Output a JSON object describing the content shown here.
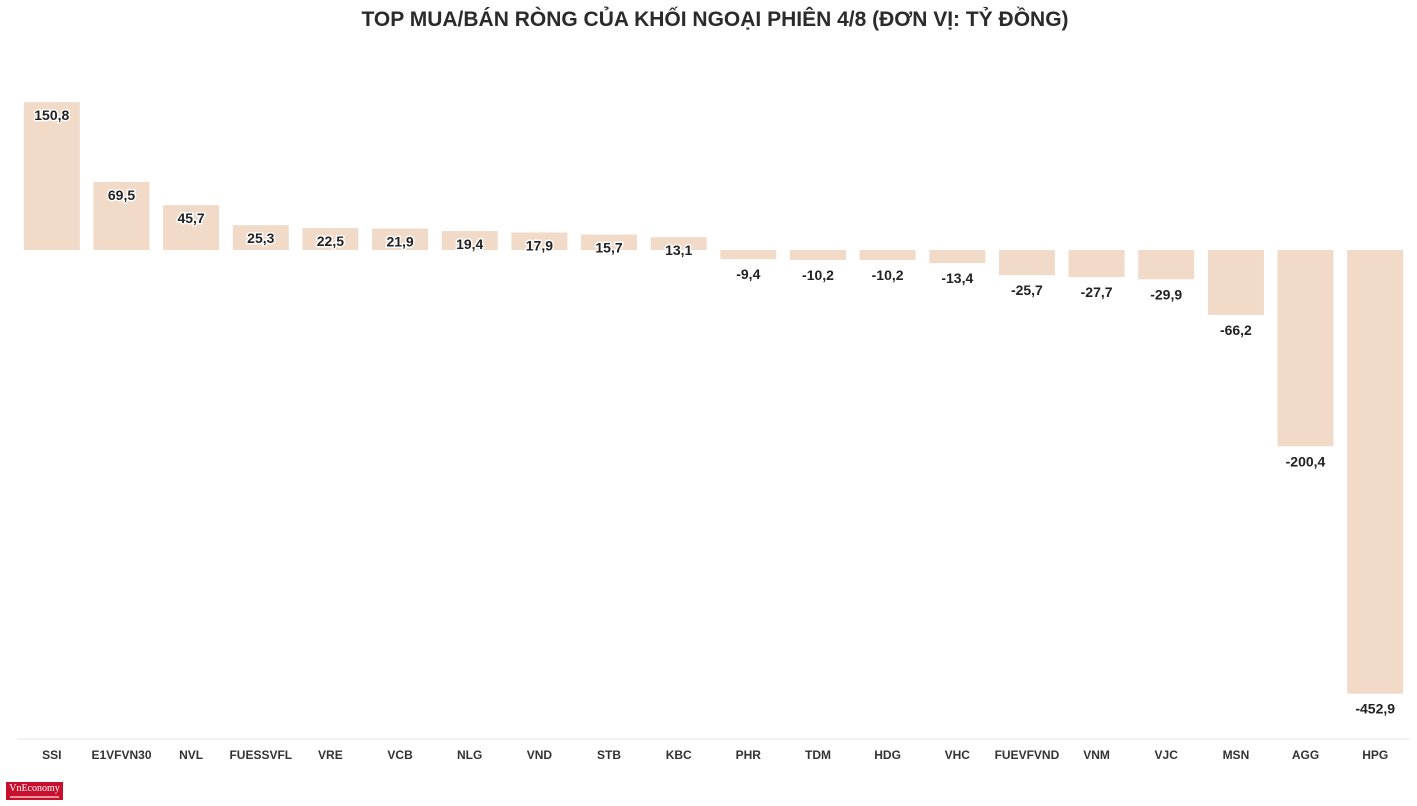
{
  "chart_data": {
    "type": "bar",
    "title": "TOP MUA/BÁN RÒNG CỦA KHỐI NGOẠI PHIÊN 4/8 (ĐƠN VỊ: TỶ ĐỒNG)",
    "categories": [
      "SSI",
      "E1VFVN30",
      "NVL",
      "FUESSVFL",
      "VRE",
      "VCB",
      "NLG",
      "VND",
      "STB",
      "KBC",
      "PHR",
      "TDM",
      "HDG",
      "VHC",
      "FUEVFVND",
      "VNM",
      "VJC",
      "MSN",
      "AGG",
      "HPG"
    ],
    "values": [
      150.8,
      69.5,
      45.7,
      25.3,
      22.5,
      21.9,
      19.4,
      17.9,
      15.7,
      13.1,
      -9.4,
      -10.2,
      -10.2,
      -13.4,
      -25.7,
      -27.7,
      -29.9,
      -66.2,
      -200.4,
      -452.9
    ],
    "value_labels": [
      "150,8",
      "69,5",
      "45,7",
      "25,3",
      "22,5",
      "21,9",
      "19,4",
      "17,9",
      "15,7",
      "13,1",
      "-9,4",
      "-10,2",
      "-10,2",
      "-13,4",
      "-25,7",
      "-27,7",
      "-29,9",
      "-66,2",
      "-200,4",
      "-452,9"
    ],
    "xlabel": "",
    "ylabel": "",
    "ylim": [
      -452.9,
      150.8
    ],
    "grid": false,
    "legend": "none",
    "bar_color": "#f2dac8",
    "axis_color": "#e6e6e6"
  },
  "brand": {
    "logo_text": "VnEconomy",
    "logo_color": "#c8102e"
  }
}
